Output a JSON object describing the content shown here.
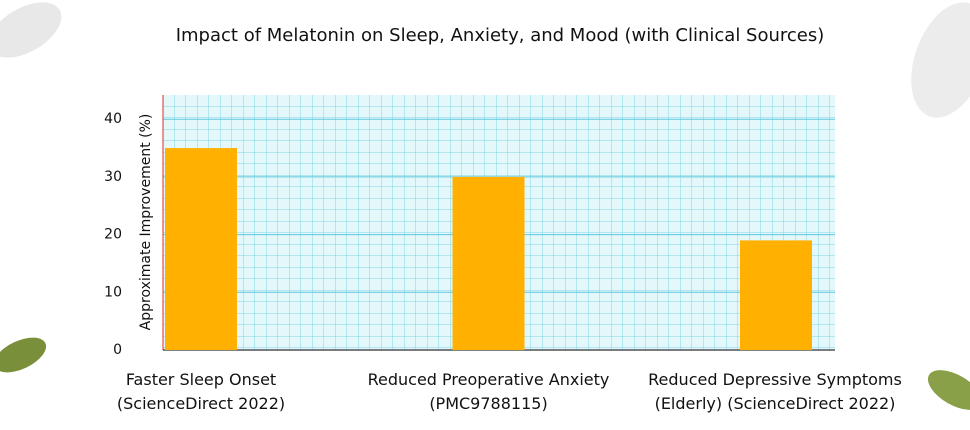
{
  "chart_data": {
    "type": "bar",
    "title": "Impact of Melatonin on Sleep, Anxiety, and Mood (with Clinical Sources)",
    "ylabel": "Approximate Improvement (%)",
    "categories": [
      "Faster Sleep Onset\n(ScienceDirect 2022)",
      "Reduced Preoperative Anxiety\n(PMC9788115)",
      "Reduced Depressive Symptoms\n(Elderly) (ScienceDirect 2022)"
    ],
    "values": [
      35,
      30,
      19
    ],
    "color": "#ffb000",
    "ylim": [
      0,
      44.2
    ],
    "yticks": [
      0,
      10,
      20,
      30,
      40
    ],
    "grid": true
  }
}
